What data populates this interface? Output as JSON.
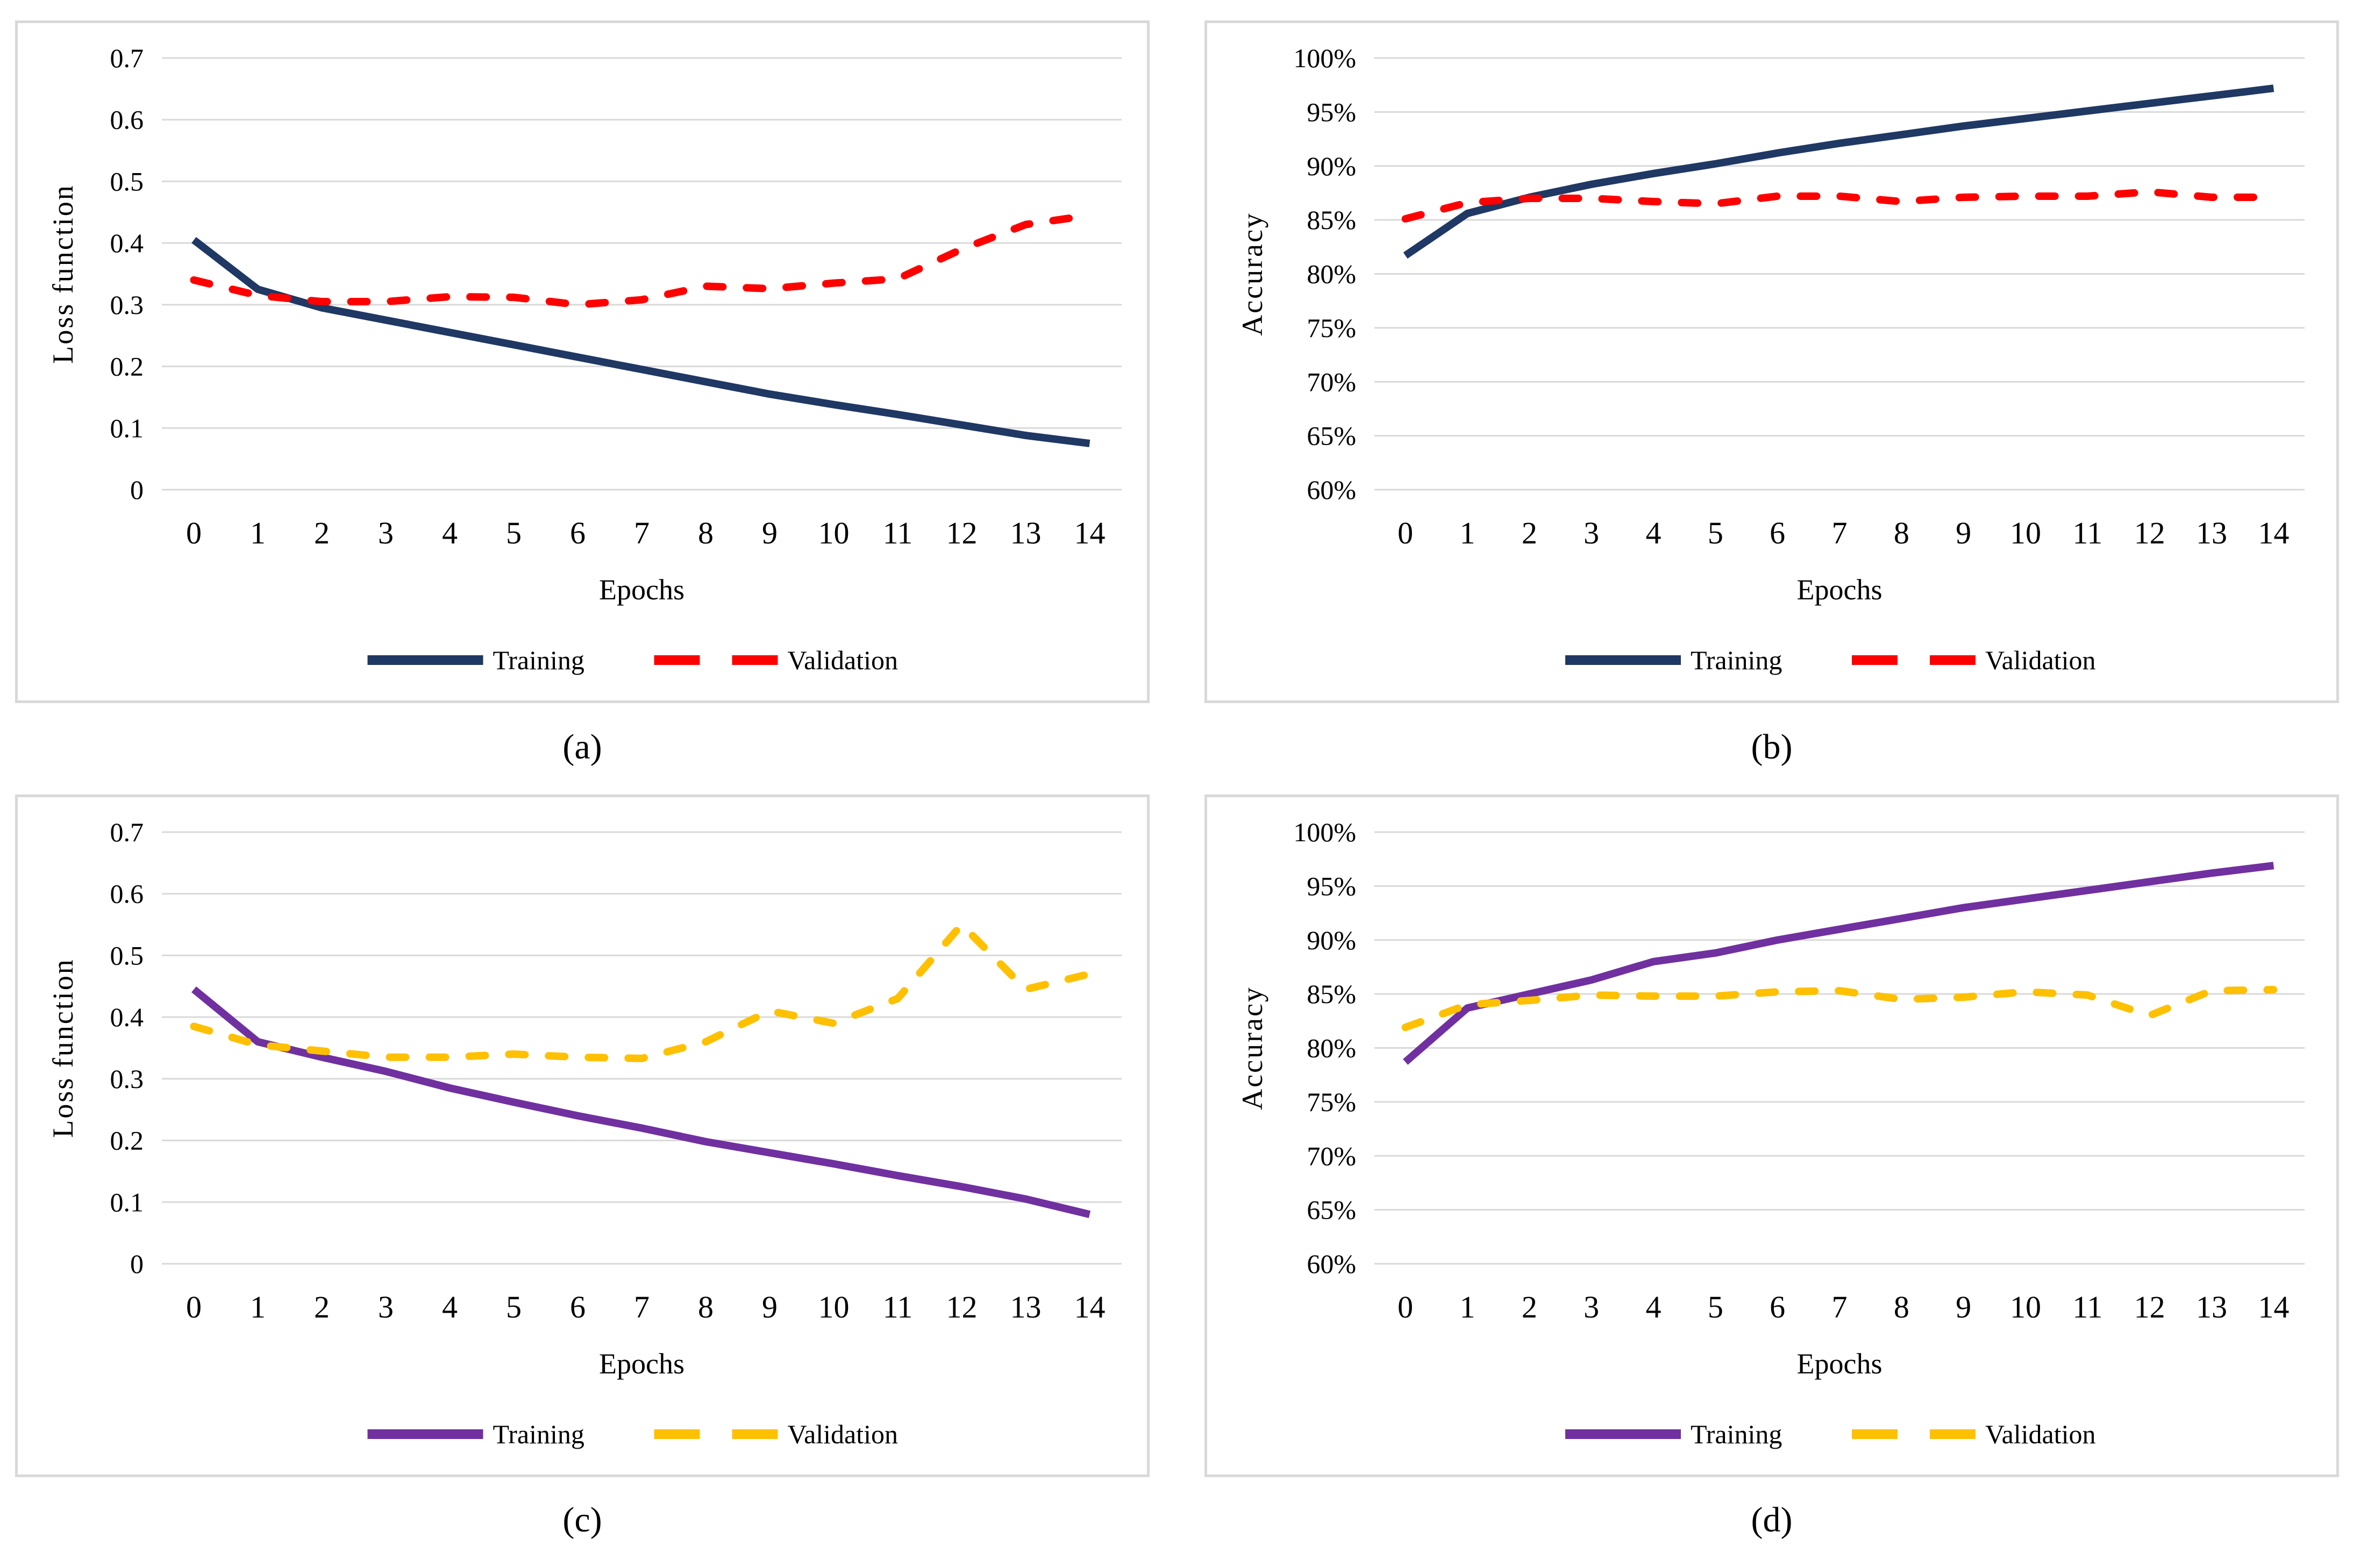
{
  "palette": {
    "navy": "#1f3864",
    "red": "#ff0000",
    "purple": "#7030a0",
    "gold": "#ffc000",
    "gridline": "#d9d9d9",
    "frame": "#d9d9d9",
    "text": "#000000"
  },
  "chart_data": [
    {
      "id": "a",
      "type": "line",
      "caption": "(a)",
      "xlabel": "Epochs",
      "ylabel": "Loss function",
      "x_labels": [
        "0",
        "1",
        "2",
        "3",
        "4",
        "5",
        "6",
        "7",
        "8",
        "9",
        "10",
        "11",
        "12",
        "13",
        "14"
      ],
      "ylim": [
        0,
        0.7
      ],
      "yticks": [
        0.7,
        0.6,
        0.5,
        0.4,
        0.3,
        0.2,
        0.1,
        0
      ],
      "ytick_labels": [
        "0.7",
        "0.6",
        "0.5",
        "0.4",
        "0.3",
        "0.2",
        "0.1",
        "0"
      ],
      "grid": true,
      "legend_position": "bottom",
      "series": [
        {
          "name": "Training",
          "color": "#1f3864",
          "dashed": false,
          "values": [
            0.405,
            0.325,
            0.295,
            0.275,
            0.255,
            0.235,
            0.215,
            0.195,
            0.175,
            0.155,
            0.138,
            0.122,
            0.105,
            0.088,
            0.075
          ]
        },
        {
          "name": "Validation",
          "color": "#ff0000",
          "dashed": true,
          "values": [
            0.34,
            0.315,
            0.305,
            0.305,
            0.313,
            0.312,
            0.3,
            0.308,
            0.33,
            0.326,
            0.335,
            0.342,
            0.39,
            0.43,
            0.445
          ]
        }
      ]
    },
    {
      "id": "b",
      "type": "line",
      "caption": "(b)",
      "xlabel": "Epochs",
      "ylabel": "Accuracy",
      "x_labels": [
        "0",
        "1",
        "2",
        "3",
        "4",
        "5",
        "6",
        "7",
        "8",
        "9",
        "10",
        "11",
        "12",
        "13",
        "14"
      ],
      "ylim": [
        60,
        100
      ],
      "yticks": [
        100,
        95,
        90,
        85,
        80,
        75,
        70,
        65,
        60
      ],
      "ytick_labels": [
        "100%",
        "95%",
        "90%",
        "85%",
        "80%",
        "75%",
        "70%",
        "65%",
        "60%"
      ],
      "grid": true,
      "legend_position": "bottom",
      "series": [
        {
          "name": "Training",
          "color": "#1f3864",
          "dashed": false,
          "values": [
            81.7,
            85.6,
            87.1,
            88.3,
            89.3,
            90.2,
            91.2,
            92.1,
            92.9,
            93.7,
            94.4,
            95.1,
            95.8,
            96.5,
            97.2
          ]
        },
        {
          "name": "Validation",
          "color": "#ff0000",
          "dashed": true,
          "values": [
            85.1,
            86.6,
            87.0,
            87.0,
            86.7,
            86.5,
            87.2,
            87.2,
            86.7,
            87.1,
            87.2,
            87.2,
            87.6,
            87.1,
            87.1
          ]
        }
      ]
    },
    {
      "id": "c",
      "type": "line",
      "caption": "(c)",
      "xlabel": "Epochs",
      "ylabel": "Loss function",
      "x_labels": [
        "0",
        "1",
        "2",
        "3",
        "4",
        "5",
        "6",
        "7",
        "8",
        "9",
        "10",
        "11",
        "12",
        "13",
        "14"
      ],
      "ylim": [
        0,
        0.7
      ],
      "yticks": [
        0.7,
        0.6,
        0.5,
        0.4,
        0.3,
        0.2,
        0.1,
        0
      ],
      "ytick_labels": [
        "0.7",
        "0.6",
        "0.5",
        "0.4",
        "0.3",
        "0.2",
        "0.1",
        "0"
      ],
      "grid": true,
      "legend_position": "bottom",
      "series": [
        {
          "name": "Training",
          "color": "#7030a0",
          "dashed": false,
          "values": [
            0.445,
            0.36,
            0.335,
            0.312,
            0.285,
            0.262,
            0.24,
            0.22,
            0.198,
            0.18,
            0.162,
            0.143,
            0.125,
            0.105,
            0.08
          ]
        },
        {
          "name": "Validation",
          "color": "#ffc000",
          "dashed": true,
          "values": [
            0.385,
            0.355,
            0.345,
            0.335,
            0.335,
            0.34,
            0.335,
            0.333,
            0.36,
            0.41,
            0.39,
            0.43,
            0.55,
            0.445,
            0.47
          ]
        }
      ]
    },
    {
      "id": "d",
      "type": "line",
      "caption": "(d)",
      "xlabel": "Epochs",
      "ylabel": "Accuracy",
      "x_labels": [
        "0",
        "1",
        "2",
        "3",
        "4",
        "5",
        "6",
        "7",
        "8",
        "9",
        "10",
        "11",
        "12",
        "13",
        "14"
      ],
      "ylim": [
        60,
        100
      ],
      "yticks": [
        100,
        95,
        90,
        85,
        80,
        75,
        70,
        65,
        60
      ],
      "ytick_labels": [
        "100%",
        "95%",
        "90%",
        "85%",
        "80%",
        "75%",
        "70%",
        "65%",
        "60%"
      ],
      "grid": true,
      "legend_position": "bottom",
      "series": [
        {
          "name": "Training",
          "color": "#7030a0",
          "dashed": false,
          "values": [
            78.7,
            83.7,
            85.0,
            86.3,
            88.0,
            88.8,
            90.0,
            91.0,
            92.0,
            93.0,
            93.8,
            94.6,
            95.4,
            96.2,
            96.9
          ]
        },
        {
          "name": "Validation",
          "color": "#ffc000",
          "dashed": true,
          "values": [
            81.9,
            84.0,
            84.4,
            84.9,
            84.8,
            84.8,
            85.2,
            85.3,
            84.5,
            84.7,
            85.2,
            84.9,
            83.0,
            85.3,
            85.4
          ]
        }
      ]
    }
  ]
}
